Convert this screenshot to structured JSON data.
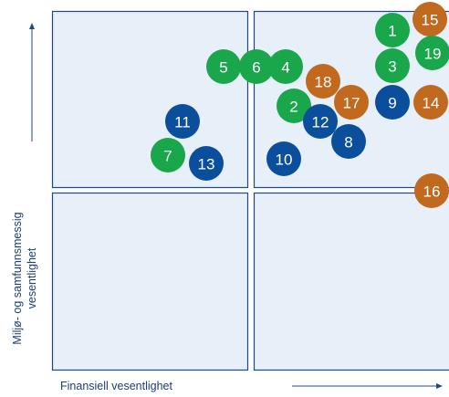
{
  "y_axis_label": [
    "Miljø- og samfunnsmessig",
    "vesentlighet"
  ],
  "x_axis_label": "Finansiell vesentlighet",
  "nodes": [
    {
      "label": "1",
      "color": "#1aa64b"
    },
    {
      "label": "15",
      "color": "#c0691f"
    },
    {
      "label": "19",
      "color": "#1aa64b"
    },
    {
      "label": "5",
      "color": "#1aa64b"
    },
    {
      "label": "6",
      "color": "#1aa64b"
    },
    {
      "label": "4",
      "color": "#1aa64b"
    },
    {
      "label": "3",
      "color": "#1aa64b"
    },
    {
      "label": "18",
      "color": "#c0691f"
    },
    {
      "label": "2",
      "color": "#1aa64b"
    },
    {
      "label": "17",
      "color": "#c0691f"
    },
    {
      "label": "9",
      "color": "#0b4f9c"
    },
    {
      "label": "14",
      "color": "#c0691f"
    },
    {
      "label": "12",
      "color": "#0b4f9c"
    },
    {
      "label": "11",
      "color": "#0b4f9c"
    },
    {
      "label": "8",
      "color": "#0b4f9c"
    },
    {
      "label": "7",
      "color": "#1aa64b"
    },
    {
      "label": "13",
      "color": "#0b4f9c"
    },
    {
      "label": "10",
      "color": "#0b4f9c"
    },
    {
      "label": "16",
      "color": "#c0691f"
    }
  ]
}
